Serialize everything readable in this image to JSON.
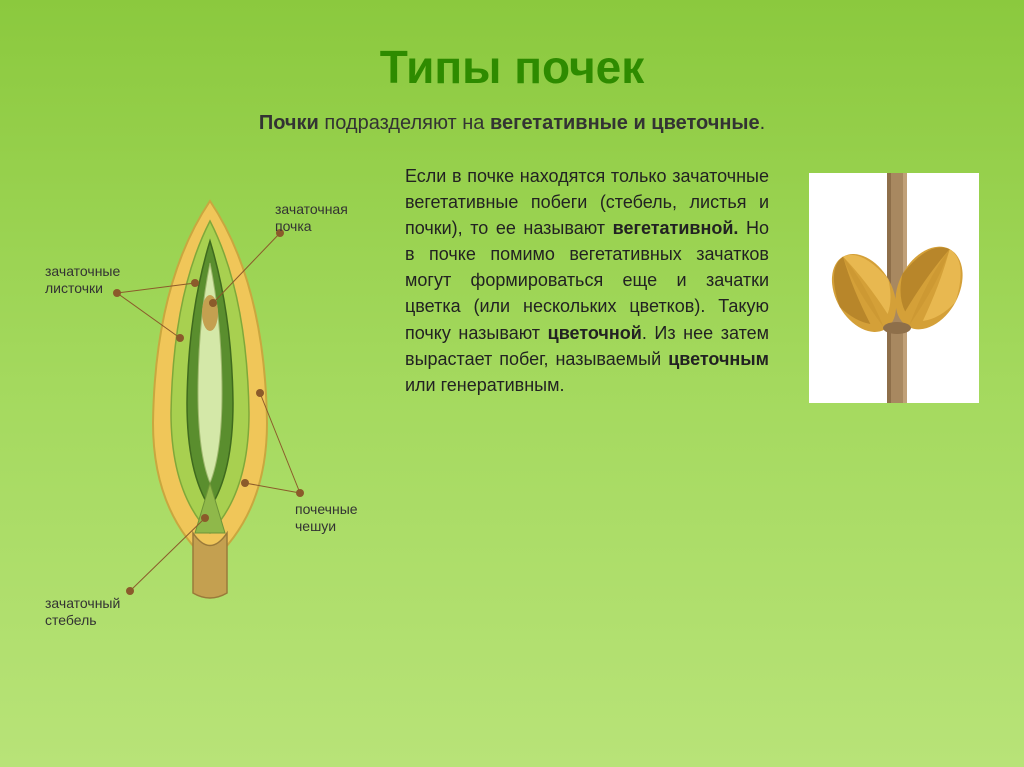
{
  "title": "Типы почек",
  "subtitle_parts": {
    "a": "Почки",
    "b": " подразделяют на ",
    "c": "вегетативные и цветочные",
    "d": "."
  },
  "body": {
    "p1a": "Если в почке находятся только зачаточные вегетативные побеги (стебель, листья и почки), то ее называют ",
    "p1b": "вегетативной.",
    "p1c": " Но в почке помимо вегетативных зачатков могут формироваться еще и зачатки цветка (или нескольких цветков). Такую почку называют ",
    "p1d": "цветочной",
    "p1e": ". Из нее затем вырастает побег, называемый ",
    "p1f": "цветочным",
    "p1g": " или генеративным."
  },
  "labels": {
    "zachat_listochki": "зачаточные\nлисточки",
    "zachat_pochka": "зачаточная\nпочка",
    "pochech_cheshui": "почечные\nчешуи",
    "zachat_stebel": "зачаточный\nстебель"
  },
  "colors": {
    "title": "#2e8b00",
    "bg_top": "#8bc93e",
    "bg_bot": "#b8e378",
    "bud_outer": "#f0c659",
    "bud_outer_edge": "#c9a73f",
    "bud_mid": "#a8d050",
    "bud_inner": "#5a8e2e",
    "bud_core": "#b88e4a",
    "bud_stem": "#c4a050",
    "stem_brown": "#a88860",
    "bud_orange": "#d4a038",
    "bud_orange_dark": "#b8862a"
  }
}
